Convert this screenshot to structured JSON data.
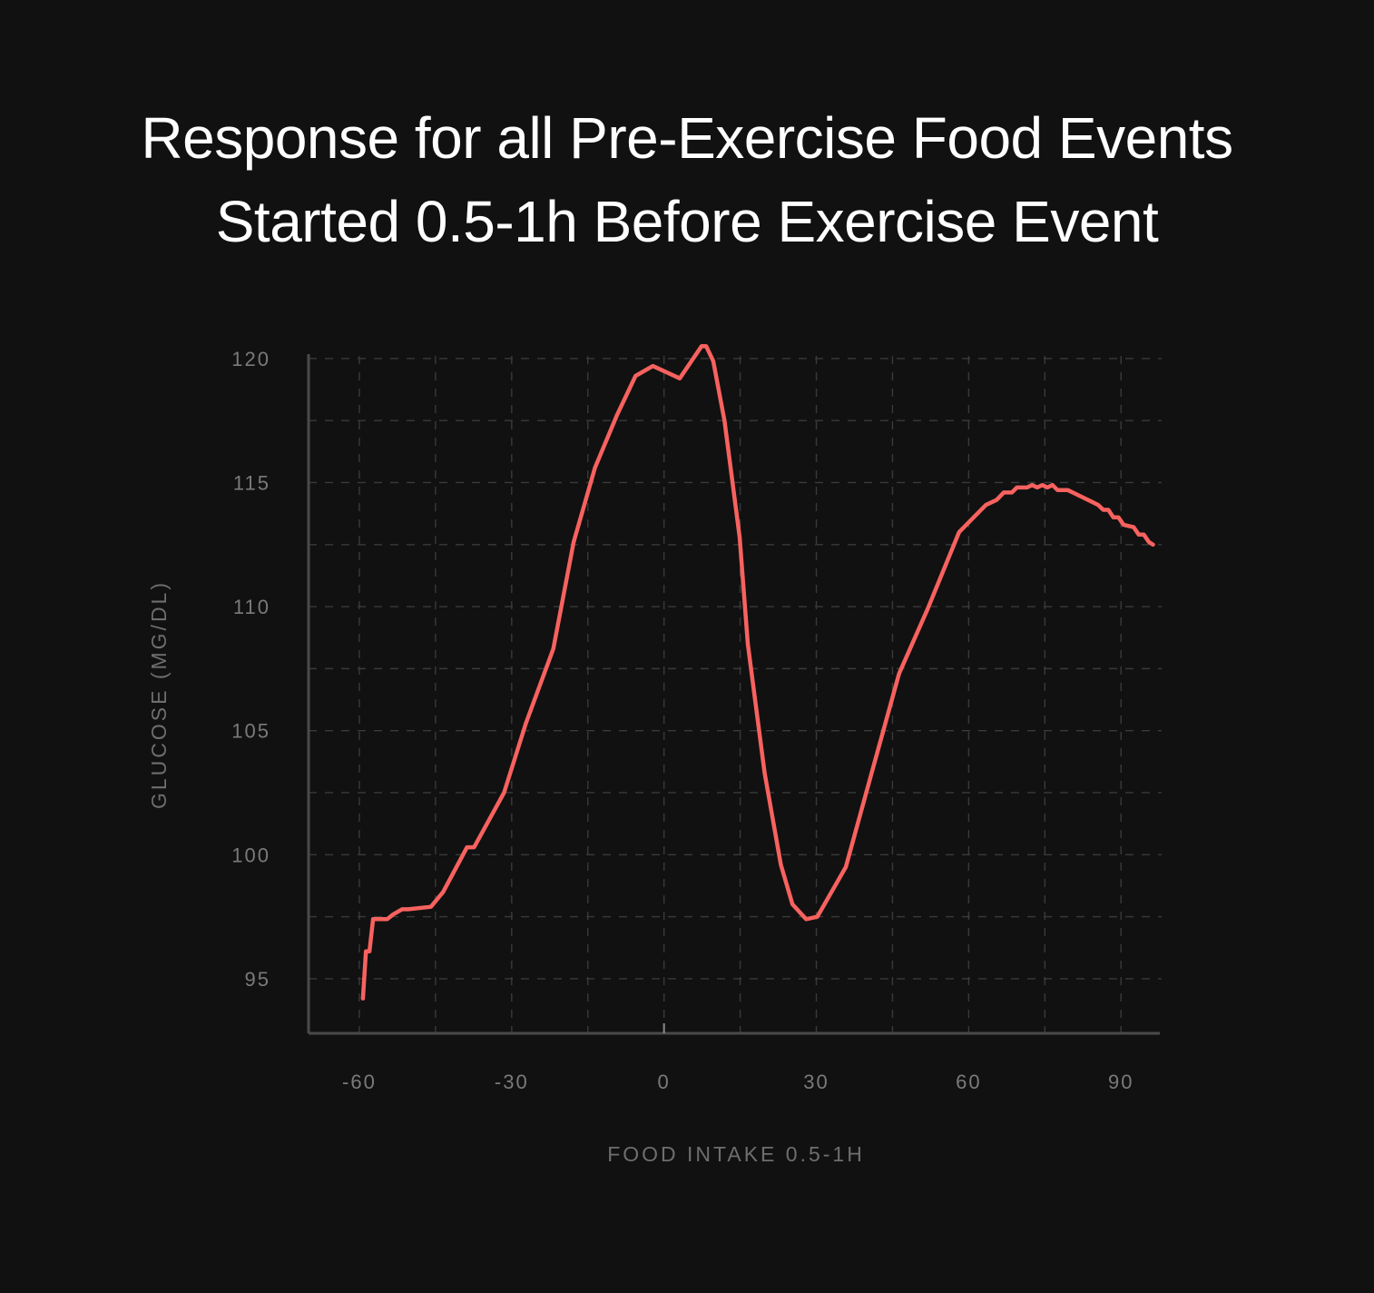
{
  "colors": {
    "background": "#111111",
    "line": "#f7625f",
    "grid": "#3a3a3a",
    "axis": "#4a4a4a",
    "text": "#ffffff",
    "muted": "#7a7a7a"
  },
  "chart_data": {
    "type": "line",
    "title": [
      "Response for all Pre-Exercise Food Events",
      "Started 0.5-1h Before Exercise Event"
    ],
    "xlabel": "FOOD INTAKE 0.5-1H",
    "ylabel": "GLUCOSE (MG/DL)",
    "xlim": [
      -70,
      98
    ],
    "ylim": [
      92.8,
      120.8
    ],
    "xticks": [
      -60,
      -30,
      0,
      30,
      60,
      90
    ],
    "xtick_labels": [
      "-60",
      "-30",
      "0",
      "30",
      "60",
      "90"
    ],
    "yticks": [
      95,
      100,
      105,
      110,
      115,
      120
    ],
    "ytick_labels": [
      "95",
      "100",
      "105",
      "110",
      "115",
      "120"
    ],
    "grid": true,
    "series": [
      {
        "x": [
          -59.3,
          -58.7,
          -58,
          -57.3,
          -56.6,
          -54.5,
          -53.3,
          -51.6,
          -50.4,
          -45.9,
          -43.5,
          -38.8,
          -37.4,
          -31.5,
          -27.2,
          -21.8,
          -17.8,
          -13.6,
          -9.3,
          -5.6,
          -2.2,
          3.1,
          7.4,
          8.3,
          9.7,
          11.9,
          14.9,
          16.5,
          19.8,
          23,
          25.3,
          28,
          30.2,
          35.8,
          40.9,
          46.3,
          51.9,
          58.1,
          63.4,
          65.5,
          66.9,
          68.5,
          69.5,
          71.5,
          72.5,
          73.5,
          74.5,
          75.5,
          76.5,
          77.5,
          79.5,
          81.5,
          82.5,
          84.5,
          85.5,
          86.5,
          87.5,
          88.5,
          89.5,
          90.5,
          92.5,
          93.5,
          94.5,
          95.5,
          96.3
        ],
        "y": [
          94.2,
          96.1,
          96.1,
          97.4,
          97.4,
          97.4,
          97.6,
          97.8,
          97.8,
          97.9,
          98.5,
          100.3,
          100.3,
          102.5,
          105.3,
          108.3,
          112.6,
          115.6,
          117.7,
          119.3,
          119.7,
          119.2,
          120.5,
          120.5,
          119.9,
          117.5,
          112.8,
          108.5,
          103.3,
          99.6,
          98,
          97.4,
          97.5,
          99.5,
          103.3,
          107.3,
          109.9,
          113,
          114.1,
          114.3,
          114.6,
          114.6,
          114.8,
          114.8,
          114.9,
          114.8,
          114.9,
          114.8,
          114.9,
          114.7,
          114.7,
          114.5,
          114.4,
          114.2,
          114.1,
          113.9,
          113.9,
          113.6,
          113.6,
          113.3,
          113.2,
          112.9,
          112.9,
          112.6,
          112.5
        ]
      }
    ]
  }
}
